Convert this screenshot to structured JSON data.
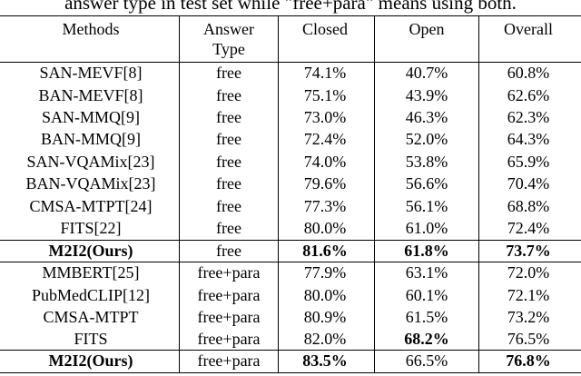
{
  "caption": "answer type in test set while \"free+para\" means using both.",
  "table": {
    "header": [
      "Methods",
      "Answer Type",
      "Closed",
      "Open",
      "Overall"
    ],
    "rows": [
      [
        "SAN-MEVF[8]",
        "free",
        "74.1%",
        "40.7%",
        "60.8%"
      ],
      [
        "BAN-MEVF[8]",
        "free",
        "75.1%",
        "43.9%",
        "62.6%"
      ],
      [
        "SAN-MMQ[9]",
        "free",
        "73.0%",
        "46.3%",
        "62.3%"
      ],
      [
        "BAN-MMQ[9]",
        "free",
        "72.4%",
        "52.0%",
        "64.3%"
      ],
      [
        "SAN-VQAMix[23]",
        "free",
        "74.0%",
        "53.8%",
        "65.9%"
      ],
      [
        "BAN-VQAMix[23]",
        "free",
        "79.6%",
        "56.6%",
        "70.4%"
      ],
      [
        "CMSA-MTPT[24]",
        "free",
        "77.3%",
        "56.1%",
        "68.8%"
      ],
      [
        "FITS[22]",
        "free",
        "80.0%",
        "61.0%",
        "72.4%"
      ],
      [
        "M2I2(Ours)",
        "free",
        "81.6%",
        "61.8%",
        "73.7%"
      ],
      [
        "MMBERT[25]",
        "free+para",
        "77.9%",
        "63.1%",
        "72.0%"
      ],
      [
        "PubMedCLIP[12]",
        "free+para",
        "80.0%",
        "60.1%",
        "72.1%"
      ],
      [
        "CMSA-MTPT",
        "free+para",
        "80.9%",
        "61.5%",
        "73.2%"
      ],
      [
        "FITS",
        "free+para",
        "82.0%",
        "68.2%",
        "76.5%"
      ],
      [
        "M2I2(Ours)",
        "free+para",
        "83.5%",
        "66.5%",
        "76.8%"
      ]
    ]
  }
}
